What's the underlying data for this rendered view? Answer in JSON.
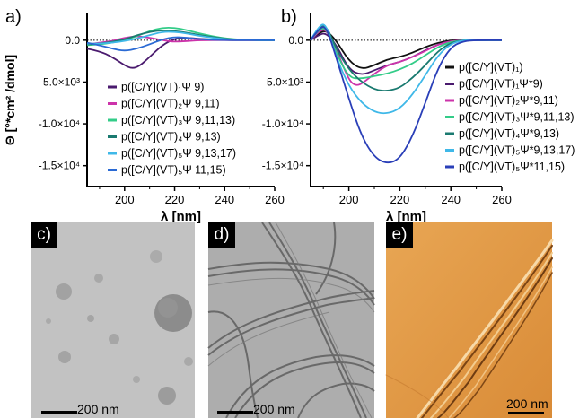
{
  "chart_data": [
    {
      "panel": "a)",
      "type": "line",
      "xlabel": "λ [nm]",
      "ylabel": "Θ [°*cm² /dmol]",
      "xlim": [
        185,
        260
      ],
      "ylim": [
        -17500,
        3200
      ],
      "xticks": [
        200,
        220,
        240,
        260
      ],
      "yticks": [
        {
          "value": 0,
          "label": "0.0"
        },
        {
          "value": -5000,
          "label": "-5.0×10³"
        },
        {
          "value": -10000,
          "label": "-1.0×10⁴"
        },
        {
          "value": -15000,
          "label": "-1.5×10⁴"
        }
      ],
      "zero_line": true,
      "legend_position": "lower-right",
      "series": [
        {
          "name": "p([C/Y](VT)₁Ψ 9)",
          "color": "#4a1a6e",
          "x": [
            185,
            190,
            195,
            200,
            203,
            206,
            210,
            215,
            220,
            225,
            230,
            240,
            250,
            260
          ],
          "y": [
            -1000,
            -1300,
            -2000,
            -3000,
            -3400,
            -3100,
            -2000,
            -600,
            200,
            300,
            150,
            0,
            0,
            0
          ]
        },
        {
          "name": "p([C/Y](VT)₂Ψ 9,11)",
          "color": "#cc33aa",
          "x": [
            185,
            190,
            195,
            200,
            205,
            210,
            215,
            220,
            225,
            230,
            240,
            250,
            260
          ],
          "y": [
            -500,
            -300,
            -100,
            300,
            500,
            300,
            0,
            -200,
            -100,
            0,
            0,
            0,
            0
          ]
        },
        {
          "name": "p([C/Y](VT)₃Ψ 9,11,13)",
          "color": "#33cc88",
          "x": [
            185,
            190,
            195,
            200,
            205,
            210,
            215,
            220,
            225,
            230,
            240,
            250,
            260
          ],
          "y": [
            -600,
            -500,
            -300,
            0,
            500,
            1100,
            1500,
            1500,
            1200,
            800,
            200,
            0,
            0
          ]
        },
        {
          "name": "p([C/Y](VT)₄Ψ 9,13)",
          "color": "#1a7a70",
          "x": [
            185,
            190,
            195,
            200,
            205,
            210,
            215,
            220,
            225,
            230,
            240,
            250,
            260
          ],
          "y": [
            -500,
            -400,
            -200,
            100,
            600,
            1000,
            1200,
            1100,
            900,
            600,
            150,
            0,
            0
          ]
        },
        {
          "name": "p([C/Y](VT)₅Ψ 9,13,17)",
          "color": "#3fb8e8",
          "x": [
            185,
            190,
            195,
            200,
            205,
            210,
            215,
            220,
            225,
            230,
            240,
            250,
            260
          ],
          "y": [
            -400,
            -400,
            -300,
            -100,
            200,
            600,
            1000,
            1000,
            800,
            500,
            100,
            0,
            0
          ]
        },
        {
          "name": "p([C/Y](VT)₅Ψ 11,15)",
          "color": "#2a6ad4",
          "x": [
            185,
            190,
            195,
            200,
            205,
            210,
            215,
            220,
            225,
            230,
            240,
            250,
            260
          ],
          "y": [
            -300,
            -600,
            -1000,
            -1300,
            -1000,
            -500,
            100,
            400,
            300,
            100,
            0,
            0,
            0
          ]
        }
      ]
    },
    {
      "panel": "b)",
      "type": "line",
      "xlabel": "λ [nm]",
      "ylabel": "",
      "xlim": [
        185,
        260
      ],
      "ylim": [
        -17500,
        3200
      ],
      "xticks": [
        200,
        220,
        240,
        260
      ],
      "yticks": [
        {
          "value": 0,
          "label": "0.0"
        },
        {
          "value": -5000,
          "label": "-5.0×10³"
        },
        {
          "value": -10000,
          "label": "-1.0×10⁴"
        },
        {
          "value": -15000,
          "label": "-1.5×10⁴"
        }
      ],
      "zero_line": true,
      "legend_position": "right",
      "series": [
        {
          "name": "p([C/Y](VT)₁)",
          "color": "#111111",
          "x": [
            185,
            188,
            191,
            195,
            200,
            205,
            210,
            215,
            220,
            225,
            230,
            235,
            240,
            245,
            250,
            260
          ],
          "y": [
            0,
            800,
            1200,
            0,
            -2500,
            -3500,
            -3000,
            -2300,
            -2000,
            -1500,
            -800,
            -300,
            0,
            0,
            0,
            0
          ]
        },
        {
          "name": "p([C/Y](VT)₁Ψ*9)",
          "color": "#4a1a6e",
          "x": [
            185,
            188,
            191,
            195,
            200,
            205,
            210,
            215,
            220,
            225,
            230,
            235,
            240,
            245,
            250,
            260
          ],
          "y": [
            0,
            600,
            900,
            -500,
            -3500,
            -4200,
            -3600,
            -3000,
            -2600,
            -2000,
            -1200,
            -500,
            -100,
            0,
            0,
            0
          ]
        },
        {
          "name": "p([C/Y](VT)₂Ψ*9,11)",
          "color": "#cc33aa",
          "x": [
            185,
            188,
            191,
            195,
            200,
            203,
            206,
            210,
            215,
            220,
            225,
            230,
            235,
            240,
            245,
            250,
            260
          ],
          "y": [
            0,
            1000,
            1400,
            -1000,
            -4800,
            -5500,
            -5000,
            -4000,
            -3000,
            -2600,
            -2000,
            -1300,
            -500,
            -100,
            0,
            0,
            0
          ]
        },
        {
          "name": "p([C/Y](VT)₃Ψ*9,11,13)",
          "color": "#33cc88",
          "x": [
            185,
            188,
            191,
            195,
            200,
            205,
            210,
            215,
            220,
            225,
            230,
            235,
            240,
            245,
            250,
            260
          ],
          "y": [
            0,
            1200,
            1600,
            -1500,
            -4500,
            -4600,
            -4300,
            -4000,
            -3500,
            -2800,
            -1800,
            -800,
            -200,
            0,
            0,
            0
          ]
        },
        {
          "name": "p([C/Y](VT)₄Ψ*9,13)",
          "color": "#1a7a70",
          "x": [
            185,
            188,
            191,
            195,
            200,
            205,
            210,
            215,
            220,
            225,
            230,
            235,
            240,
            245,
            250,
            260
          ],
          "y": [
            0,
            1400,
            1900,
            -1000,
            -3500,
            -5000,
            -5900,
            -6100,
            -5700,
            -4500,
            -3000,
            -1300,
            -300,
            0,
            0,
            0
          ]
        },
        {
          "name": "p([C/Y](VT)₅Ψ*9,13,17)",
          "color": "#3fb8e8",
          "x": [
            185,
            188,
            191,
            195,
            200,
            205,
            210,
            215,
            220,
            225,
            230,
            235,
            240,
            245,
            250,
            260
          ],
          "y": [
            0,
            1600,
            2100,
            -2000,
            -5500,
            -7500,
            -8600,
            -8800,
            -8200,
            -6500,
            -4200,
            -1800,
            -400,
            0,
            0,
            0
          ]
        },
        {
          "name": "p([C/Y](VT)₅Ψ*11,15)",
          "color": "#2a3fb8",
          "x": [
            185,
            188,
            191,
            195,
            200,
            205,
            210,
            215,
            220,
            225,
            230,
            235,
            240,
            245,
            250,
            260
          ],
          "y": [
            0,
            1300,
            1800,
            -2000,
            -7000,
            -11500,
            -14000,
            -14800,
            -14200,
            -11500,
            -7500,
            -3300,
            -800,
            -100,
            0,
            0
          ]
        }
      ]
    }
  ],
  "micrographs": [
    {
      "tag": "c)",
      "scale_label": "200 nm"
    },
    {
      "tag": "d)",
      "scale_label": "200 nm"
    },
    {
      "tag": "e)",
      "scale_label": "200 nm"
    }
  ]
}
